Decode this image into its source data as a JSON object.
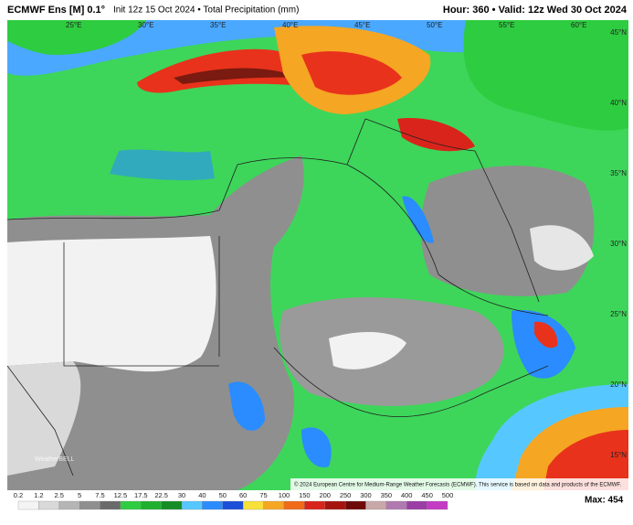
{
  "header": {
    "title": "ECMWF Ens [M] 0.1°",
    "subtitle": "Init 12z 15 Oct 2024 • Total Precipitation (mm)",
    "valid": "Hour: 360 • Valid: 12z Wed 30 Oct 2024"
  },
  "lon_labels": [
    "25°E",
    "30°E",
    "35°E",
    "40°E",
    "45°E",
    "50°E",
    "55°E",
    "60°E"
  ],
  "lat_labels": [
    "45°N",
    "40°N",
    "35°N",
    "30°N",
    "25°N",
    "20°N",
    "15°N"
  ],
  "logo": "WeatherBELL",
  "copyright": "© 2024 European Centre for Medium-Range Weather Forecasts (ECMWF). This service is based on data and products of the ECMWF.",
  "colorbar": {
    "labels": [
      "0.2",
      "1.2",
      "2.5",
      "5",
      "7.5",
      "12.5",
      "17.5",
      "22.5",
      "30",
      "40",
      "50",
      "60",
      "75",
      "100",
      "150",
      "200",
      "250",
      "300",
      "350",
      "400",
      "450",
      "500"
    ],
    "colors": [
      "#f4f4f4",
      "#d9d9d9",
      "#b5b5b5",
      "#8f8f8f",
      "#6a6a6a",
      "#2ecc40",
      "#1fb02f",
      "#168c25",
      "#56c8ff",
      "#2a8cff",
      "#1c4fd8",
      "#f7e03a",
      "#f5a623",
      "#f06a1a",
      "#d9241b",
      "#a6140f",
      "#6e0a08",
      "#c8a8a8",
      "#b07ab0",
      "#9a3ea6",
      "#c43cc4"
    ]
  },
  "max": "Max: 454"
}
